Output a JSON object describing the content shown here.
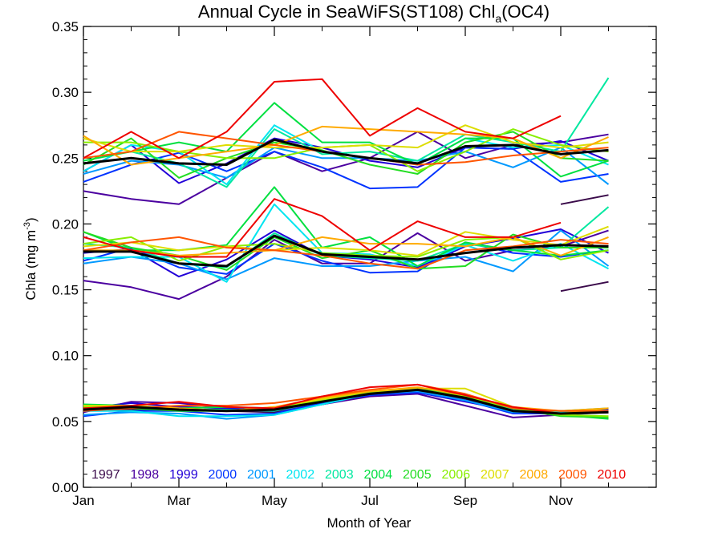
{
  "chart_data": {
    "type": "line",
    "title": "Annual Cycle in SeaWiFS(ST108) Chl",
    "title_subscript": "a",
    "title_suffix": "(OC4)",
    "xlabel": "Month of Year",
    "ylabel": "Chla (mg m",
    "ylabel_superscript": "-3",
    "ylabel_suffix": ")",
    "xlim": [
      1,
      13
    ],
    "ylim": [
      0,
      0.35
    ],
    "x_ticks": [
      {
        "value": 1,
        "label": "Jan"
      },
      {
        "value": 3,
        "label": "Mar"
      },
      {
        "value": 5,
        "label": "May"
      },
      {
        "value": 7,
        "label": "Jul"
      },
      {
        "value": 9,
        "label": "Sep"
      },
      {
        "value": 11,
        "label": "Nov"
      }
    ],
    "y_ticks": [
      "0.00",
      "0.05",
      "0.10",
      "0.15",
      "0.20",
      "0.25",
      "0.30",
      "0.35"
    ],
    "grid": false,
    "legend_placement": "bottom (inside plot, single row)",
    "x": [
      1,
      2,
      3,
      4,
      5,
      6,
      7,
      8,
      9,
      10,
      11,
      12
    ],
    "series": [
      {
        "name": "1997",
        "color": "#3a0a4a",
        "groups": {
          "upper": [
            null,
            null,
            null,
            null,
            null,
            null,
            null,
            null,
            null,
            null,
            0.215,
            0.222
          ],
          "middle": [
            null,
            null,
            null,
            null,
            null,
            null,
            null,
            null,
            null,
            null,
            0.149,
            0.156
          ],
          "lower": [
            0.058,
            0.059,
            0.059,
            0.058,
            0.057,
            0.063,
            0.07,
            0.073,
            0.067,
            0.058,
            0.058,
            0.058
          ]
        }
      },
      {
        "name": "1998",
        "color": "#4b00a0",
        "groups": {
          "upper": [
            0.225,
            0.219,
            0.215,
            0.235,
            0.255,
            0.24,
            0.25,
            0.27,
            0.25,
            0.26,
            0.262,
            0.268
          ],
          "middle": [
            0.157,
            0.152,
            0.143,
            0.16,
            0.188,
            0.17,
            0.17,
            0.193,
            0.172,
            0.18,
            0.183,
            0.195
          ],
          "lower": [
            0.057,
            0.065,
            0.064,
            0.06,
            0.058,
            0.063,
            0.069,
            0.071,
            0.062,
            0.053,
            0.055,
            0.057
          ]
        }
      },
      {
        "name": "1999",
        "color": "#2200d8",
        "groups": {
          "upper": [
            0.24,
            0.26,
            0.231,
            0.246,
            0.265,
            0.258,
            0.248,
            0.243,
            0.258,
            0.257,
            0.263,
            0.248
          ],
          "middle": [
            0.178,
            0.181,
            0.16,
            0.173,
            0.195,
            0.176,
            0.173,
            0.167,
            0.183,
            0.189,
            0.196,
            0.178
          ],
          "lower": [
            0.06,
            0.064,
            0.061,
            0.06,
            0.058,
            0.065,
            0.071,
            0.072,
            0.065,
            0.058,
            0.057,
            0.059
          ]
        }
      },
      {
        "name": "2000",
        "color": "#0033ff",
        "groups": {
          "upper": [
            0.232,
            0.245,
            0.254,
            0.24,
            0.255,
            0.243,
            0.227,
            0.228,
            0.258,
            0.257,
            0.232,
            0.238
          ],
          "middle": [
            0.172,
            0.182,
            0.167,
            0.162,
            0.185,
            0.172,
            0.163,
            0.164,
            0.186,
            0.178,
            0.175,
            0.18
          ],
          "lower": [
            0.054,
            0.058,
            0.058,
            0.055,
            0.056,
            0.064,
            0.07,
            0.072,
            0.066,
            0.056,
            0.056,
            0.058
          ]
        }
      },
      {
        "name": "2001",
        "color": "#0099ff",
        "groups": {
          "upper": [
            0.238,
            0.248,
            0.245,
            0.235,
            0.258,
            0.25,
            0.25,
            0.248,
            0.255,
            0.243,
            0.258,
            0.23
          ],
          "middle": [
            0.17,
            0.175,
            0.17,
            0.158,
            0.174,
            0.168,
            0.168,
            0.172,
            0.175,
            0.164,
            0.195,
            0.168
          ],
          "lower": [
            0.055,
            0.057,
            0.056,
            0.052,
            0.055,
            0.063,
            0.071,
            0.073,
            0.066,
            0.057,
            0.057,
            0.058
          ]
        }
      },
      {
        "name": "2002",
        "color": "#00e5f0",
        "groups": {
          "upper": [
            0.24,
            0.26,
            0.255,
            0.23,
            0.275,
            0.255,
            0.25,
            0.245,
            0.265,
            0.258,
            0.26,
            0.245
          ],
          "middle": [
            0.174,
            0.175,
            0.175,
            0.156,
            0.215,
            0.178,
            0.177,
            0.168,
            0.184,
            0.172,
            0.185,
            0.166
          ],
          "lower": [
            0.058,
            0.058,
            0.054,
            0.054,
            0.055,
            0.063,
            0.071,
            0.074,
            0.068,
            0.058,
            0.057,
            0.058
          ]
        }
      },
      {
        "name": "2003",
        "color": "#00e8a0",
        "groups": {
          "upper": [
            0.25,
            0.255,
            0.246,
            0.228,
            0.272,
            0.253,
            0.255,
            0.248,
            0.268,
            0.262,
            0.255,
            0.311
          ],
          "middle": [
            0.185,
            0.182,
            0.17,
            0.167,
            0.193,
            0.176,
            0.174,
            0.172,
            0.185,
            0.18,
            0.182,
            0.213
          ],
          "lower": [
            0.062,
            0.061,
            0.059,
            0.059,
            0.058,
            0.065,
            0.072,
            0.074,
            0.069,
            0.059,
            0.058,
            0.06
          ]
        }
      },
      {
        "name": "2004",
        "color": "#00e040",
        "groups": {
          "upper": [
            0.248,
            0.255,
            0.262,
            0.255,
            0.292,
            0.262,
            0.262,
            0.245,
            0.265,
            0.265,
            0.236,
            0.248
          ],
          "middle": [
            0.194,
            0.18,
            0.18,
            0.184,
            0.228,
            0.182,
            0.19,
            0.168,
            0.186,
            0.18,
            0.176,
            0.18
          ],
          "lower": [
            0.063,
            0.062,
            0.06,
            0.061,
            0.06,
            0.066,
            0.073,
            0.075,
            0.07,
            0.06,
            0.055,
            0.052
          ]
        }
      },
      {
        "name": "2005",
        "color": "#22dd22",
        "groups": {
          "upper": [
            0.245,
            0.265,
            0.235,
            0.25,
            0.262,
            0.256,
            0.245,
            0.238,
            0.262,
            0.27,
            0.25,
            0.248
          ],
          "middle": [
            0.194,
            0.182,
            0.176,
            0.165,
            0.19,
            0.174,
            0.18,
            0.166,
            0.168,
            0.192,
            0.182,
            0.182
          ],
          "lower": [
            0.062,
            0.06,
            0.058,
            0.058,
            0.059,
            0.066,
            0.073,
            0.074,
            0.069,
            0.06,
            0.054,
            0.053
          ]
        }
      },
      {
        "name": "2006",
        "color": "#88ee00",
        "groups": {
          "upper": [
            0.262,
            0.262,
            0.255,
            0.25,
            0.25,
            0.258,
            0.26,
            0.24,
            0.255,
            0.272,
            0.26,
            0.255
          ],
          "middle": [
            0.185,
            0.19,
            0.172,
            0.183,
            0.185,
            0.178,
            0.176,
            0.175,
            0.188,
            0.19,
            0.173,
            0.18
          ],
          "lower": [
            0.061,
            0.061,
            0.059,
            0.058,
            0.06,
            0.066,
            0.072,
            0.074,
            0.069,
            0.06,
            0.055,
            0.054
          ]
        }
      },
      {
        "name": "2007",
        "color": "#dddd00",
        "groups": {
          "upper": [
            0.265,
            0.255,
            0.255,
            0.26,
            0.258,
            0.258,
            0.26,
            0.258,
            0.275,
            0.262,
            0.258,
            0.262
          ],
          "middle": [
            0.183,
            0.186,
            0.18,
            0.183,
            0.18,
            0.182,
            0.18,
            0.176,
            0.194,
            0.188,
            0.184,
            0.198
          ],
          "lower": [
            0.062,
            0.062,
            0.06,
            0.058,
            0.061,
            0.067,
            0.073,
            0.075,
            0.075,
            0.061,
            0.056,
            0.06
          ]
        }
      },
      {
        "name": "2008",
        "color": "#ffaa00",
        "groups": {
          "upper": [
            0.267,
            0.245,
            0.25,
            0.255,
            0.26,
            0.274,
            0.272,
            0.27,
            0.268,
            0.265,
            0.25,
            0.266
          ],
          "middle": [
            0.18,
            0.18,
            0.176,
            0.178,
            0.18,
            0.19,
            0.185,
            0.185,
            0.183,
            0.19,
            0.176,
            0.19
          ],
          "lower": [
            0.06,
            0.061,
            0.06,
            0.058,
            0.061,
            0.068,
            0.073,
            0.076,
            0.07,
            0.061,
            0.058,
            0.06
          ]
        }
      },
      {
        "name": "2009",
        "color": "#ff5500",
        "groups": {
          "upper": [
            0.25,
            0.255,
            0.27,
            0.265,
            0.26,
            0.255,
            0.25,
            0.245,
            0.247,
            0.252,
            0.255,
            0.258
          ],
          "middle": [
            0.18,
            0.186,
            0.19,
            0.182,
            0.18,
            0.176,
            0.17,
            0.166,
            0.18,
            0.183,
            0.188,
            0.185
          ],
          "lower": [
            0.058,
            0.06,
            0.062,
            0.062,
            0.064,
            0.069,
            0.074,
            0.078,
            0.071,
            0.06,
            0.058,
            0.058
          ]
        }
      },
      {
        "name": "2010",
        "color": "#ee0000",
        "groups": {
          "upper": [
            0.25,
            0.27,
            0.25,
            0.27,
            0.308,
            0.31,
            0.267,
            0.288,
            0.27,
            0.265,
            0.282,
            null
          ],
          "middle": [
            0.19,
            0.18,
            0.175,
            0.175,
            0.219,
            0.206,
            0.18,
            0.202,
            0.19,
            0.19,
            0.201,
            null
          ],
          "lower": [
            0.06,
            0.062,
            0.065,
            0.061,
            0.06,
            0.069,
            0.076,
            0.078,
            0.07,
            0.061,
            0.056,
            null
          ]
        }
      }
    ],
    "mean_series": {
      "color": "#000000",
      "groups": {
        "upper": [
          0.246,
          0.25,
          0.246,
          0.245,
          0.264,
          0.255,
          0.25,
          0.246,
          0.259,
          0.26,
          0.253,
          0.256
        ],
        "middle": [
          0.179,
          0.179,
          0.17,
          0.168,
          0.191,
          0.177,
          0.175,
          0.173,
          0.178,
          0.182,
          0.184,
          0.183
        ],
        "lower": [
          0.059,
          0.061,
          0.059,
          0.058,
          0.059,
          0.065,
          0.071,
          0.074,
          0.068,
          0.058,
          0.056,
          0.057
        ]
      }
    }
  }
}
